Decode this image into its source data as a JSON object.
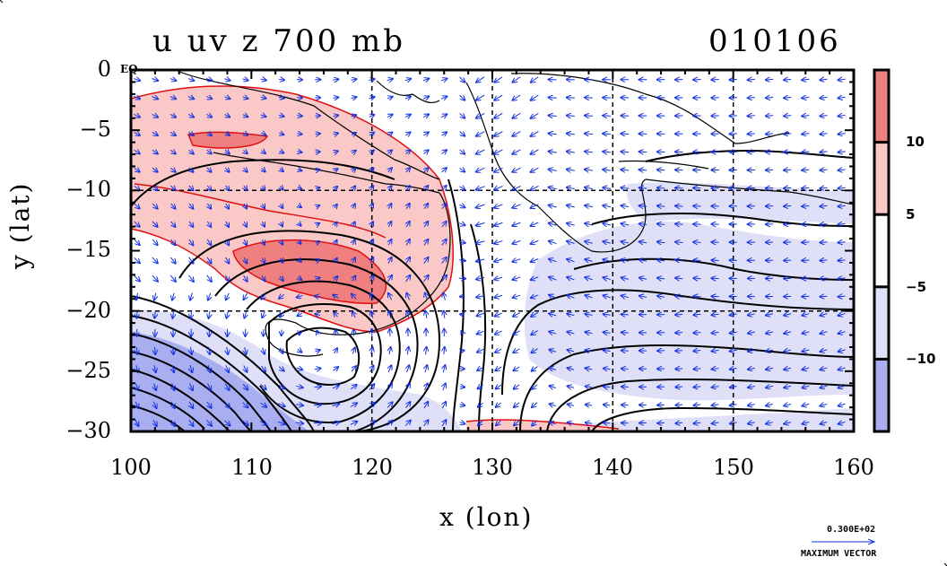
{
  "title_left": "u uv z 700 mb",
  "title_right": "010106",
  "eq_label": "EQ",
  "vector_key": {
    "value_label": "0.300E+02",
    "caption": "MAXIMUM VECTOR"
  },
  "chart_data": {
    "type": "heatmap",
    "title": "u uv z 700 mb",
    "xlabel": "x (lon)",
    "ylabel": "y (lat)",
    "xlim": [
      100,
      160
    ],
    "ylim": [
      -30,
      0
    ],
    "xticks": [
      "100",
      "110",
      "120",
      "130",
      "140",
      "150",
      "160"
    ],
    "yticks": [
      "0",
      "−5",
      "−10",
      "−15",
      "−20",
      "−25",
      "−30"
    ],
    "colorbar": {
      "levels": [
        "10",
        "5",
        "−5",
        "−10"
      ],
      "colors": [
        "#f08080",
        "#fbc8c8",
        "#ffffff",
        "#dfe0f7",
        "#a9aef0"
      ]
    },
    "fields": {
      "shaded": "u wind (colorbar levels)",
      "contours": "z geopotential height",
      "vectors": "uv wind"
    },
    "regions": {
      "westerly_core": {
        "lon": [
          100,
          126
        ],
        "lat": [
          -22,
          -3
        ],
        "max_class": ">10"
      },
      "easterly_southwest": {
        "lon": [
          100,
          125
        ],
        "lat": [
          -30,
          -20
        ],
        "max_class": "<-10"
      },
      "easterly_east": {
        "lon": [
          130,
          160
        ],
        "lat": [
          -28,
          -5
        ],
        "max_class": "-10 to -5"
      }
    }
  }
}
